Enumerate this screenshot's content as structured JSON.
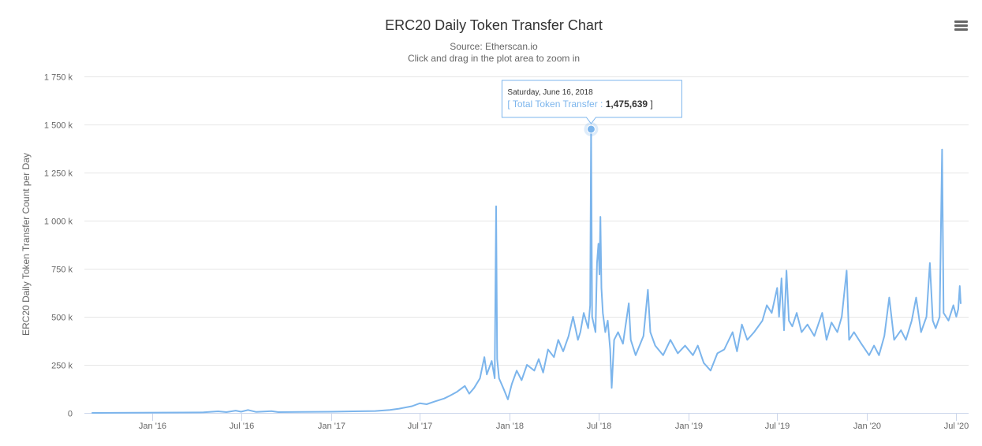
{
  "menu": {
    "icon": "hamburger-menu-icon"
  },
  "chart_data": {
    "type": "line",
    "title": "ERC20 Daily Token Transfer Chart",
    "subtitle_lines": [
      "Source: Etherscan.io",
      "Click and drag in the plot area to zoom in"
    ],
    "ylabel": "ERC20 Daily Token Transfer Count per Day",
    "xlabel": "",
    "x_range": [
      "2015-09-01",
      "2020-07-10"
    ],
    "ylim": [
      0,
      1750000
    ],
    "y_ticks": [
      0,
      250000,
      500000,
      750000,
      1000000,
      1250000,
      1500000,
      1750000
    ],
    "y_tick_labels": [
      "0",
      "250 k",
      "500 k",
      "750 k",
      "1 000 k",
      "1 250 k",
      "1 500 k",
      "1 750 k"
    ],
    "x_ticks": [
      {
        "date": "2016-01-01",
        "label": "Jan '16"
      },
      {
        "date": "2016-07-01",
        "label": "Jul '16"
      },
      {
        "date": "2017-01-01",
        "label": "Jan '17"
      },
      {
        "date": "2017-07-01",
        "label": "Jul '17"
      },
      {
        "date": "2018-01-01",
        "label": "Jan '18"
      },
      {
        "date": "2018-07-01",
        "label": "Jul '18"
      },
      {
        "date": "2019-01-01",
        "label": "Jan '19"
      },
      {
        "date": "2019-07-01",
        "label": "Jul '19"
      },
      {
        "date": "2020-01-01",
        "label": "Jan '20"
      },
      {
        "date": "2020-07-01",
        "label": "Jul '20"
      }
    ],
    "grid": true,
    "legend": "none",
    "series": [
      {
        "name": "Total Token Transfer",
        "color": "#7cb5ec",
        "points": [
          [
            "2015-09-01",
            100
          ],
          [
            "2015-10-15",
            500
          ],
          [
            "2015-12-01",
            800
          ],
          [
            "2016-01-15",
            1500
          ],
          [
            "2016-03-01",
            2000
          ],
          [
            "2016-04-15",
            3000
          ],
          [
            "2016-05-15",
            8000
          ],
          [
            "2016-06-01",
            4000
          ],
          [
            "2016-06-20",
            12000
          ],
          [
            "2016-07-01",
            6000
          ],
          [
            "2016-07-15",
            15000
          ],
          [
            "2016-08-01",
            5000
          ],
          [
            "2016-09-01",
            9000
          ],
          [
            "2016-09-15",
            4000
          ],
          [
            "2016-11-01",
            5000
          ],
          [
            "2017-01-01",
            6000
          ],
          [
            "2017-02-15",
            8000
          ],
          [
            "2017-04-01",
            10000
          ],
          [
            "2017-05-01",
            15000
          ],
          [
            "2017-05-20",
            22000
          ],
          [
            "2017-06-15",
            35000
          ],
          [
            "2017-07-01",
            50000
          ],
          [
            "2017-07-15",
            45000
          ],
          [
            "2017-08-01",
            60000
          ],
          [
            "2017-08-20",
            75000
          ],
          [
            "2017-09-01",
            90000
          ],
          [
            "2017-09-15",
            110000
          ],
          [
            "2017-10-01",
            140000
          ],
          [
            "2017-10-10",
            100000
          ],
          [
            "2017-10-20",
            130000
          ],
          [
            "2017-11-01",
            180000
          ],
          [
            "2017-11-10",
            290000
          ],
          [
            "2017-11-15",
            200000
          ],
          [
            "2017-11-25",
            270000
          ],
          [
            "2017-12-01",
            180000
          ],
          [
            "2017-12-04",
            1075000
          ],
          [
            "2017-12-06",
            280000
          ],
          [
            "2017-12-10",
            180000
          ],
          [
            "2017-12-20",
            120000
          ],
          [
            "2017-12-28",
            70000
          ],
          [
            "2018-01-05",
            150000
          ],
          [
            "2018-01-15",
            220000
          ],
          [
            "2018-01-25",
            170000
          ],
          [
            "2018-02-05",
            250000
          ],
          [
            "2018-02-20",
            220000
          ],
          [
            "2018-03-01",
            280000
          ],
          [
            "2018-03-10",
            210000
          ],
          [
            "2018-03-20",
            330000
          ],
          [
            "2018-04-01",
            290000
          ],
          [
            "2018-04-10",
            380000
          ],
          [
            "2018-04-20",
            320000
          ],
          [
            "2018-05-01",
            400000
          ],
          [
            "2018-05-10",
            500000
          ],
          [
            "2018-05-20",
            380000
          ],
          [
            "2018-05-25",
            420000
          ],
          [
            "2018-06-01",
            520000
          ],
          [
            "2018-06-10",
            440000
          ],
          [
            "2018-06-14",
            560000
          ],
          [
            "2018-06-16",
            1475639
          ],
          [
            "2018-06-18",
            500000
          ],
          [
            "2018-06-25",
            420000
          ],
          [
            "2018-06-28",
            780000
          ],
          [
            "2018-07-01",
            880000
          ],
          [
            "2018-07-03",
            720000
          ],
          [
            "2018-07-05",
            1020000
          ],
          [
            "2018-07-07",
            650000
          ],
          [
            "2018-07-10",
            520000
          ],
          [
            "2018-07-15",
            420000
          ],
          [
            "2018-07-20",
            480000
          ],
          [
            "2018-07-25",
            330000
          ],
          [
            "2018-07-28",
            130000
          ],
          [
            "2018-08-02",
            380000
          ],
          [
            "2018-08-10",
            420000
          ],
          [
            "2018-08-20",
            360000
          ],
          [
            "2018-09-01",
            570000
          ],
          [
            "2018-09-05",
            380000
          ],
          [
            "2018-09-15",
            300000
          ],
          [
            "2018-10-01",
            400000
          ],
          [
            "2018-10-10",
            640000
          ],
          [
            "2018-10-15",
            420000
          ],
          [
            "2018-10-25",
            350000
          ],
          [
            "2018-11-10",
            300000
          ],
          [
            "2018-11-25",
            380000
          ],
          [
            "2018-12-10",
            310000
          ],
          [
            "2018-12-25",
            350000
          ],
          [
            "2019-01-10",
            300000
          ],
          [
            "2019-01-20",
            350000
          ],
          [
            "2019-02-01",
            260000
          ],
          [
            "2019-02-15",
            220000
          ],
          [
            "2019-03-01",
            310000
          ],
          [
            "2019-03-15",
            330000
          ],
          [
            "2019-04-01",
            420000
          ],
          [
            "2019-04-10",
            320000
          ],
          [
            "2019-04-20",
            460000
          ],
          [
            "2019-05-01",
            380000
          ],
          [
            "2019-05-15",
            420000
          ],
          [
            "2019-06-01",
            480000
          ],
          [
            "2019-06-10",
            560000
          ],
          [
            "2019-06-20",
            520000
          ],
          [
            "2019-07-01",
            650000
          ],
          [
            "2019-07-05",
            500000
          ],
          [
            "2019-07-10",
            700000
          ],
          [
            "2019-07-15",
            430000
          ],
          [
            "2019-07-20",
            740000
          ],
          [
            "2019-07-25",
            480000
          ],
          [
            "2019-08-01",
            450000
          ],
          [
            "2019-08-10",
            520000
          ],
          [
            "2019-08-20",
            420000
          ],
          [
            "2019-09-01",
            460000
          ],
          [
            "2019-09-15",
            400000
          ],
          [
            "2019-10-01",
            520000
          ],
          [
            "2019-10-10",
            380000
          ],
          [
            "2019-10-20",
            470000
          ],
          [
            "2019-11-01",
            420000
          ],
          [
            "2019-11-10",
            500000
          ],
          [
            "2019-11-20",
            740000
          ],
          [
            "2019-11-25",
            380000
          ],
          [
            "2019-12-05",
            420000
          ],
          [
            "2019-12-20",
            360000
          ],
          [
            "2020-01-05",
            300000
          ],
          [
            "2020-01-15",
            350000
          ],
          [
            "2020-01-25",
            300000
          ],
          [
            "2020-02-05",
            400000
          ],
          [
            "2020-02-15",
            600000
          ],
          [
            "2020-02-25",
            380000
          ],
          [
            "2020-03-10",
            430000
          ],
          [
            "2020-03-20",
            380000
          ],
          [
            "2020-04-01",
            480000
          ],
          [
            "2020-04-10",
            600000
          ],
          [
            "2020-04-20",
            420000
          ],
          [
            "2020-05-01",
            500000
          ],
          [
            "2020-05-08",
            780000
          ],
          [
            "2020-05-14",
            480000
          ],
          [
            "2020-05-20",
            440000
          ],
          [
            "2020-05-28",
            500000
          ],
          [
            "2020-06-02",
            1370000
          ],
          [
            "2020-06-05",
            520000
          ],
          [
            "2020-06-15",
            480000
          ],
          [
            "2020-06-25",
            560000
          ],
          [
            "2020-07-01",
            500000
          ],
          [
            "2020-07-05",
            540000
          ],
          [
            "2020-07-08",
            660000
          ],
          [
            "2020-07-10",
            570000
          ]
        ]
      }
    ],
    "tooltip": {
      "date_label": "Saturday, June 16, 2018",
      "date": "2018-06-16",
      "series_name": "Total Token Transfer",
      "value": 1475639,
      "value_label": "1,475,639"
    }
  }
}
